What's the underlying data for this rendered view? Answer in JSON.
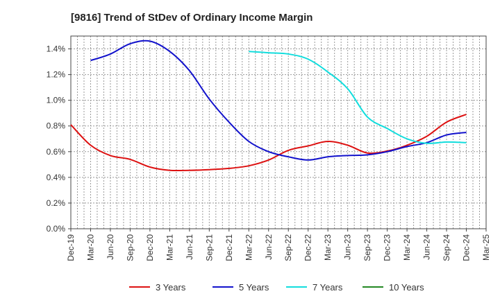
{
  "chart_data": {
    "type": "line",
    "title": "[9816]  Trend of StDev of Ordinary Income Margin",
    "xlabel": "",
    "ylabel": "",
    "x": [
      "Dec-19",
      "Mar-20",
      "Jun-20",
      "Sep-20",
      "Dec-20",
      "Mar-21",
      "Jun-21",
      "Sep-21",
      "Dec-21",
      "Mar-22",
      "Jun-22",
      "Sep-22",
      "Dec-22",
      "Mar-23",
      "Jun-23",
      "Sep-23",
      "Dec-23",
      "Mar-24",
      "Jun-24",
      "Sep-24",
      "Dec-24",
      "Mar-25"
    ],
    "ylim": [
      0,
      1.5
    ],
    "yticks": [
      "0.0%",
      "0.2%",
      "0.4%",
      "0.6%",
      "0.8%",
      "1.0%",
      "1.2%",
      "1.4%"
    ],
    "ytick_values": [
      0,
      0.2,
      0.4,
      0.6,
      0.8,
      1.0,
      1.2,
      1.4
    ],
    "grid": true,
    "legend_position": "bottom",
    "series": [
      {
        "name": "3 Years",
        "color": "#dd1111",
        "values": [
          0.81,
          0.65,
          0.57,
          0.54,
          0.48,
          0.455,
          0.455,
          0.46,
          0.47,
          0.49,
          0.535,
          0.61,
          0.645,
          0.68,
          0.65,
          0.59,
          0.605,
          0.65,
          0.72,
          0.83,
          0.89,
          null
        ]
      },
      {
        "name": "5 Years",
        "color": "#1111cc",
        "values": [
          null,
          1.31,
          1.36,
          1.44,
          1.46,
          1.38,
          1.23,
          1.01,
          0.83,
          0.68,
          0.6,
          0.56,
          0.535,
          0.56,
          0.57,
          0.575,
          0.6,
          0.64,
          0.67,
          0.73,
          0.75,
          null
        ]
      },
      {
        "name": "7 Years",
        "color": "#11dddd",
        "values": [
          null,
          null,
          null,
          null,
          null,
          null,
          null,
          null,
          null,
          1.38,
          1.37,
          1.36,
          1.32,
          1.22,
          1.09,
          0.87,
          0.78,
          0.7,
          0.665,
          0.675,
          0.67,
          null
        ]
      },
      {
        "name": "10 Years",
        "color": "#228822",
        "values": [
          null,
          null,
          null,
          null,
          null,
          null,
          null,
          null,
          null,
          null,
          null,
          null,
          null,
          null,
          null,
          null,
          null,
          null,
          null,
          null,
          null,
          null
        ]
      }
    ]
  }
}
